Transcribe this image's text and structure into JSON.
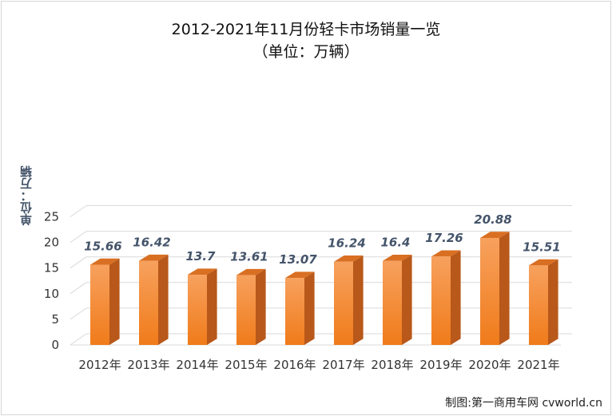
{
  "chart_data": {
    "type": "bar",
    "title": "2012-2021年11月份轻卡市场销量一览",
    "subtitle": "（单位：万辆）",
    "ylabel": "单位：万辆",
    "xlabel": "",
    "categories": [
      "2012年",
      "2013年",
      "2014年",
      "2015年",
      "2016年",
      "2017年",
      "2018年",
      "2019年",
      "2020年",
      "2021年"
    ],
    "values": [
      15.66,
      16.42,
      13.7,
      13.61,
      13.07,
      16.24,
      16.4,
      17.26,
      20.88,
      15.51
    ],
    "value_labels": [
      "15.66",
      "16.42",
      "13.7",
      "13.61",
      "13.07",
      "16.24",
      "16.4",
      "17.26",
      "20.88",
      "15.51"
    ],
    "yticks": [
      "0",
      "5",
      "10",
      "15",
      "20",
      "25"
    ],
    "ylim": [
      0,
      25
    ],
    "grid": true,
    "legend": "none",
    "colors": {
      "bar_top": "#f7a15e",
      "bar_bottom": "#f07b1a",
      "bar_side": "#b8581a",
      "bar_cap": "#d96f22",
      "data_label": "#44546a",
      "axis_text": "#333333",
      "grid": "#d9d9d9"
    }
  },
  "credit": "制图:第一商用车网 cvworld.cn"
}
